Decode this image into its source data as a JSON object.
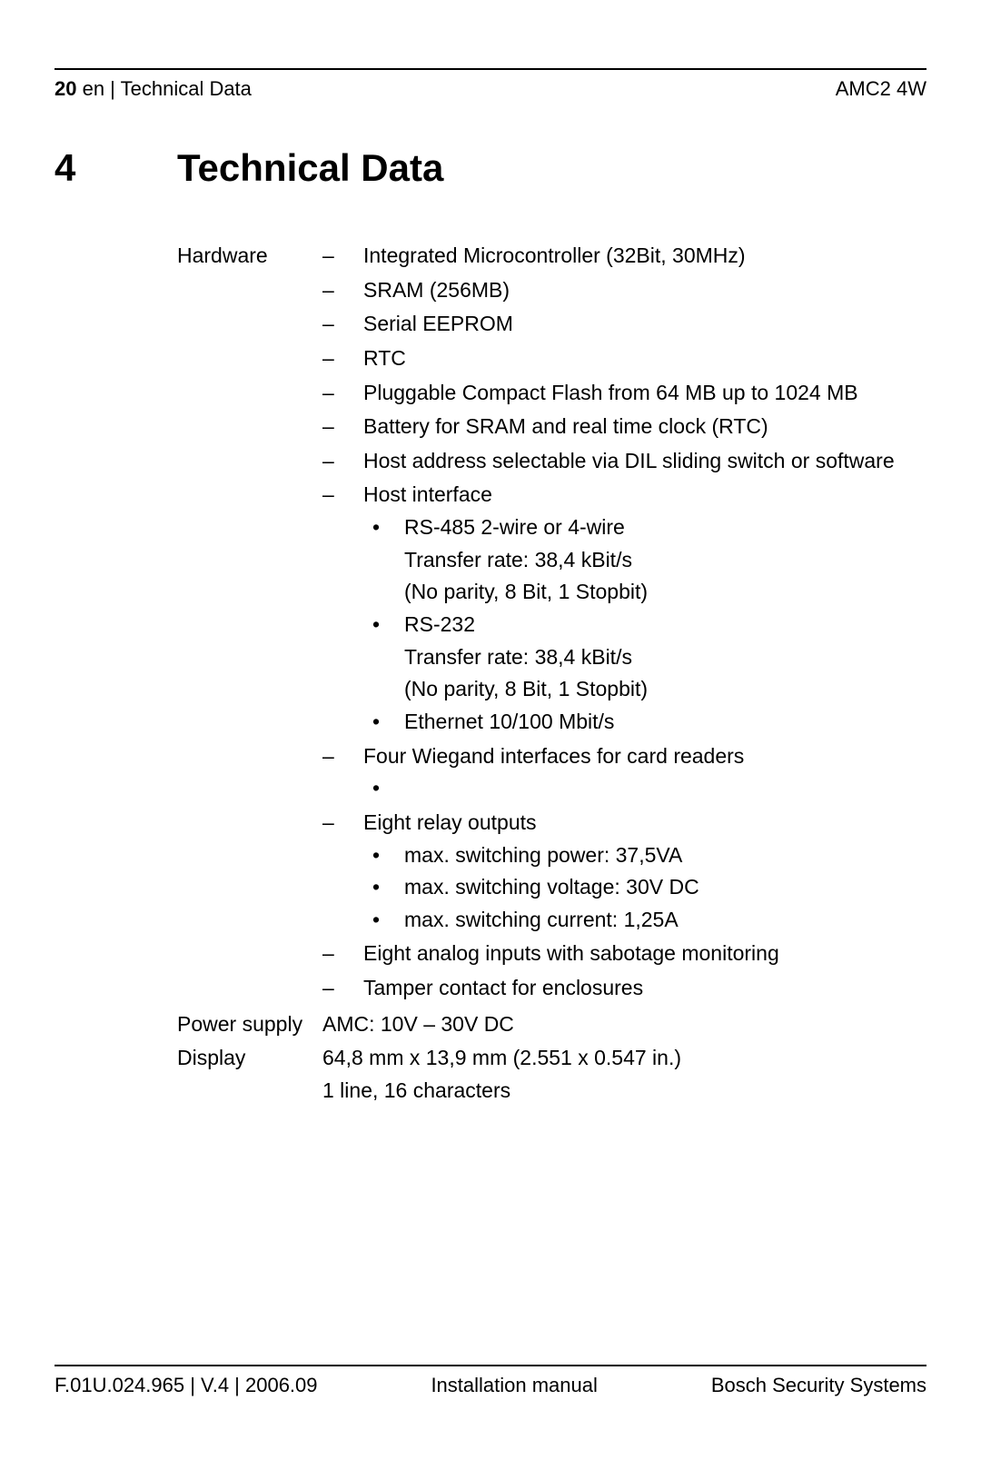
{
  "header": {
    "page_number": "20",
    "lang_section": " en | Technical Data",
    "product": "AMC2 4W"
  },
  "chapter": {
    "number": "4",
    "title": "Technical Data"
  },
  "specs": {
    "hardware": {
      "label": "Hardware",
      "items": {
        "i0": "Integrated Microcontroller (32Bit, 30MHz)",
        "i1": "SRAM (256MB)",
        "i2": "Serial EEPROM",
        "i3": "RTC",
        "i4": "Pluggable Compact Flash from 64 MB up to 1024 MB",
        "i5": "Battery for SRAM and real time clock (RTC)",
        "i6": "Host address selectable via DIL sliding switch or software",
        "i7": {
          "text": "Host interface",
          "sub": {
            "s0": "RS-485 2-wire or 4-wire\nTransfer rate: 38,4 kBit/s\n(No parity, 8 Bit, 1 Stopbit)",
            "s1": "RS-232\nTransfer rate: 38,4 kBit/s\n(No parity, 8 Bit, 1 Stopbit)",
            "s2": "Ethernet 10/100 Mbit/s"
          }
        },
        "i8": {
          "text": "Four Wiegand interfaces for  card readers",
          "sub": {
            "s0": ""
          }
        },
        "i9": {
          "text": "Eight relay outputs",
          "sub": {
            "s0": "max. switching power: 37,5VA",
            "s1": "max. switching voltage: 30V DC",
            "s2": "max. switching current: 1,25A"
          }
        },
        "i10": "Eight analog inputs with sabotage monitoring",
        "i11": "Tamper contact for enclosures"
      }
    },
    "power": {
      "label": "Power supply",
      "value": "AMC: 10V – 30V DC"
    },
    "display": {
      "label": "Display",
      "line1": "64,8 mm x 13,9 mm (2.551 x 0.547 in.)",
      "line2": "1 line, 16 characters"
    }
  },
  "footer": {
    "left": "F.01U.024.965 | V.4 | 2006.09",
    "center": "Installation manual",
    "right": "Bosch Security Systems"
  },
  "glyphs": {
    "dash": "–",
    "bullet": "•"
  }
}
